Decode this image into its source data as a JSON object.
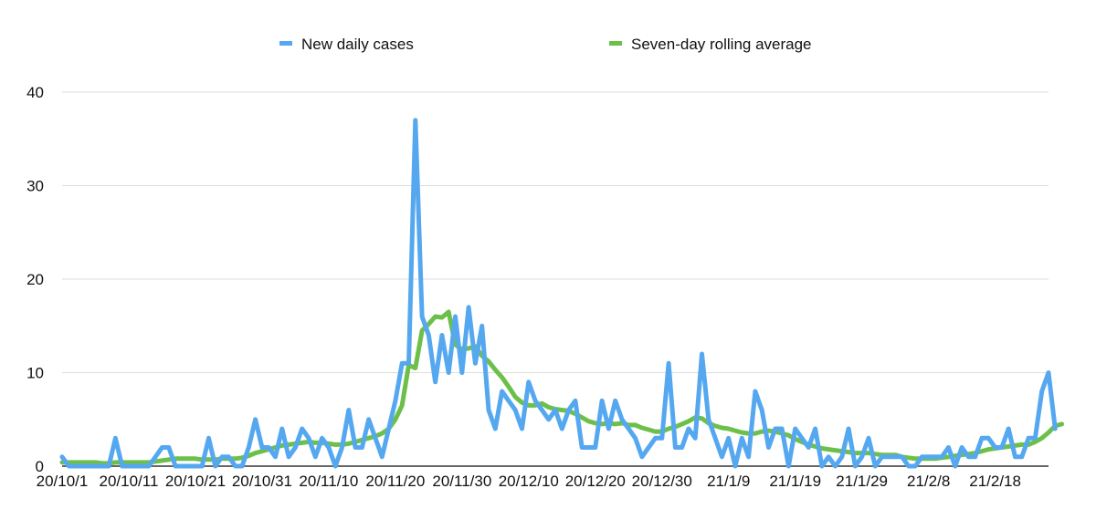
{
  "chart_data": {
    "type": "line",
    "title": "",
    "xlabel": "",
    "ylabel": "",
    "ylim": [
      0,
      40
    ],
    "yticks": [
      0,
      10,
      20,
      30,
      40
    ],
    "grid": true,
    "legend_position": "top-center",
    "x_tick_labels": [
      {
        "index": 0,
        "label": "20/10/1"
      },
      {
        "index": 10,
        "label": "20/10/11"
      },
      {
        "index": 20,
        "label": "20/10/21"
      },
      {
        "index": 30,
        "label": "20/10/31"
      },
      {
        "index": 40,
        "label": "20/11/10"
      },
      {
        "index": 50,
        "label": "20/11/20"
      },
      {
        "index": 60,
        "label": "20/11/30"
      },
      {
        "index": 70,
        "label": "20/12/10"
      },
      {
        "index": 80,
        "label": "20/12/20"
      },
      {
        "index": 90,
        "label": "20/12/30"
      },
      {
        "index": 100,
        "label": "21/1/9"
      },
      {
        "index": 110,
        "label": "21/1/19"
      },
      {
        "index": 120,
        "label": "21/1/29"
      },
      {
        "index": 130,
        "label": "21/2/8"
      },
      {
        "index": 140,
        "label": "21/2/18"
      }
    ],
    "x_range": [
      0,
      148
    ],
    "series": [
      {
        "name": "New daily cases",
        "color": "#55a8f0",
        "values": [
          1,
          0,
          0,
          0,
          0,
          0,
          0,
          0,
          3,
          0,
          0,
          0,
          0,
          0,
          1,
          2,
          2,
          0,
          0,
          0,
          0,
          0,
          3,
          0,
          1,
          1,
          0,
          0,
          2,
          5,
          2,
          2,
          1,
          4,
          1,
          2,
          4,
          3,
          1,
          3,
          2,
          0,
          2,
          6,
          2,
          2,
          5,
          3,
          1,
          4,
          7,
          11,
          11,
          37,
          16,
          14,
          9,
          14,
          10,
          16,
          10,
          17,
          11,
          15,
          6,
          4,
          8,
          7,
          6,
          4,
          9,
          7,
          6,
          5,
          6,
          4,
          6,
          7,
          2,
          2,
          2,
          7,
          4,
          7,
          5,
          4,
          3,
          1,
          2,
          3,
          3,
          11,
          2,
          2,
          4,
          3,
          12,
          5,
          3,
          1,
          3,
          0,
          3,
          1,
          8,
          6,
          2,
          4,
          4,
          0,
          4,
          3,
          2,
          4,
          0,
          1,
          0,
          1,
          4,
          0,
          1,
          3,
          0,
          1,
          1,
          1,
          1,
          0,
          0,
          1,
          1,
          1,
          1,
          2,
          0,
          2,
          1,
          1,
          3,
          3,
          2,
          2,
          4,
          1,
          1,
          3,
          3,
          8,
          10,
          4
        ]
      },
      {
        "name": "Seven-day rolling average",
        "color": "#6cc04a",
        "values": [
          0.4,
          0.4,
          0.4,
          0.4,
          0.4,
          0.4,
          0.3,
          0.3,
          0.4,
          0.4,
          0.4,
          0.4,
          0.4,
          0.4,
          0.5,
          0.6,
          0.7,
          0.8,
          0.8,
          0.8,
          0.8,
          0.7,
          0.7,
          0.7,
          0.8,
          0.8,
          0.8,
          0.9,
          1.1,
          1.4,
          1.6,
          1.8,
          2.0,
          2.2,
          2.3,
          2.4,
          2.5,
          2.6,
          2.5,
          2.5,
          2.4,
          2.3,
          2.3,
          2.4,
          2.6,
          2.8,
          3.0,
          3.2,
          3.5,
          4.0,
          5.0,
          6.5,
          10.8,
          10.5,
          14.5,
          15.2,
          16.0,
          15.9,
          16.5,
          13.0,
          12.5,
          12.6,
          12.8,
          11.8,
          11.2,
          10.3,
          9.5,
          8.5,
          7.4,
          6.8,
          6.5,
          6.5,
          6.7,
          6.3,
          6.1,
          6.0,
          5.9,
          5.6,
          5.2,
          4.8,
          4.6,
          4.5,
          4.6,
          4.5,
          4.6,
          4.4,
          4.4,
          4.1,
          3.9,
          3.7,
          3.7,
          4.0,
          4.2,
          4.5,
          4.8,
          5.2,
          5.1,
          4.6,
          4.3,
          4.1,
          4.0,
          3.8,
          3.6,
          3.5,
          3.5,
          3.7,
          3.8,
          3.7,
          3.5,
          3.3,
          2.9,
          2.6,
          2.3,
          2.1,
          1.9,
          1.8,
          1.7,
          1.6,
          1.5,
          1.4,
          1.4,
          1.4,
          1.3,
          1.2,
          1.2,
          1.2,
          1.0,
          0.9,
          0.8,
          0.8,
          0.8,
          0.8,
          0.9,
          1.0,
          1.1,
          1.2,
          1.3,
          1.4,
          1.6,
          1.8,
          1.9,
          2.0,
          2.1,
          2.2,
          2.3,
          2.3,
          2.6,
          3.0,
          3.6,
          4.3,
          4.5
        ]
      }
    ]
  }
}
